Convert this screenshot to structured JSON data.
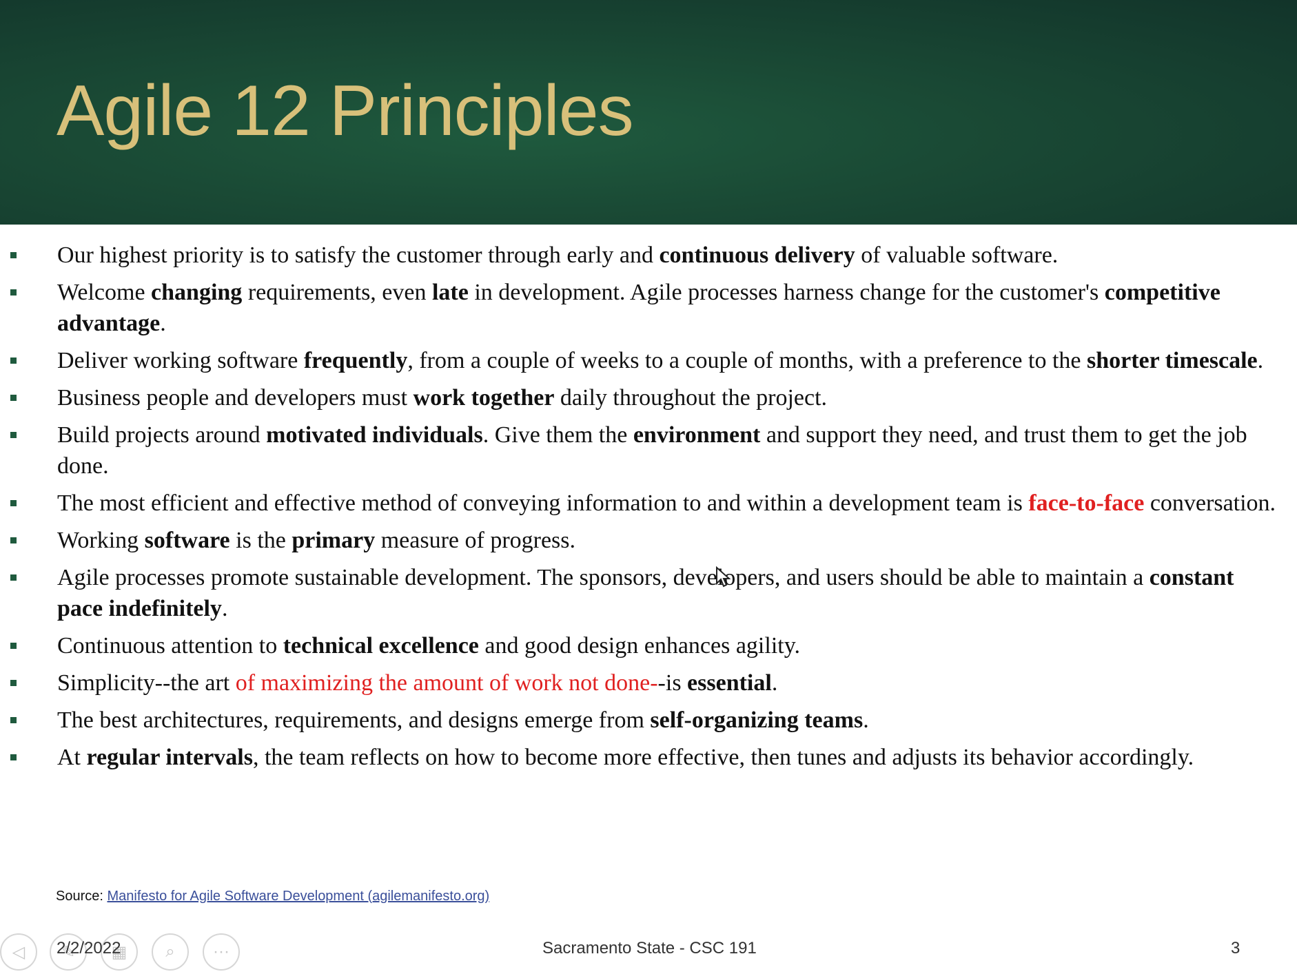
{
  "slide": {
    "title": "Agile 12 Principles",
    "bullets": [
      {
        "parts": [
          {
            "t": "Our highest priority is to satisfy the customer through early and "
          },
          {
            "t": "continuous delivery",
            "b": true
          },
          {
            "t": " of valuable software."
          }
        ]
      },
      {
        "parts": [
          {
            "t": "Welcome "
          },
          {
            "t": "changing",
            "b": true
          },
          {
            "t": " requirements, even "
          },
          {
            "t": "late",
            "b": true
          },
          {
            "t": " in development. Agile processes harness change for the customer's "
          },
          {
            "t": "competitive advantage",
            "b": true
          },
          {
            "t": "."
          }
        ]
      },
      {
        "parts": [
          {
            "t": "Deliver working software "
          },
          {
            "t": "frequently",
            "b": true
          },
          {
            "t": ", from a couple of weeks to a couple of months, with a preference to the "
          },
          {
            "t": "shorter timescale",
            "b": true
          },
          {
            "t": "."
          }
        ]
      },
      {
        "parts": [
          {
            "t": "Business people and developers must "
          },
          {
            "t": "work together",
            "b": true
          },
          {
            "t": " daily throughout the project."
          }
        ]
      },
      {
        "parts": [
          {
            "t": "Build projects around "
          },
          {
            "t": "motivated individuals",
            "b": true
          },
          {
            "t": ". Give them the "
          },
          {
            "t": "environment",
            "b": true
          },
          {
            "t": " and support they need, and trust them to get the job done."
          }
        ]
      },
      {
        "parts": [
          {
            "t": "The most efficient and effective method of conveying information to and within a development team is "
          },
          {
            "t": "face-to-face",
            "b": true,
            "red": true
          },
          {
            "t": " conversation."
          }
        ]
      },
      {
        "parts": [
          {
            "t": "Working "
          },
          {
            "t": "software",
            "b": true
          },
          {
            "t": " is the "
          },
          {
            "t": "primary",
            "b": true
          },
          {
            "t": " measure of progress."
          }
        ]
      },
      {
        "parts": [
          {
            "t": "Agile processes promote sustainable development. The sponsors, developers, and users should be able to maintain a "
          },
          {
            "t": "constant pace indefinitely",
            "b": true
          },
          {
            "t": "."
          }
        ]
      },
      {
        "parts": [
          {
            "t": "Continuous attention to "
          },
          {
            "t": "technical excellence",
            "b": true
          },
          {
            "t": " and good design enhances agility."
          }
        ]
      },
      {
        "parts": [
          {
            "t": "Simplicity--the art "
          },
          {
            "t": "of maximizing the amount of work not done-",
            "red": true
          },
          {
            "t": "-is "
          },
          {
            "t": "essential",
            "b": true
          },
          {
            "t": "."
          }
        ]
      },
      {
        "parts": [
          {
            "t": "The best architectures, requirements, and designs emerge from "
          },
          {
            "t": "self-organizing teams",
            "b": true
          },
          {
            "t": "."
          }
        ]
      },
      {
        "parts": [
          {
            "t": "At "
          },
          {
            "t": "regular intervals",
            "b": true
          },
          {
            "t": ", the team reflects on how to become more effective, then tunes and adjusts its behavior accordingly."
          }
        ]
      }
    ],
    "source_label": "Source: ",
    "source_link": "Manifesto for Agile Software Development (agilemanifesto.org)"
  },
  "footer": {
    "date": "2/2/2022",
    "center": "Sacramento State - CSC 191",
    "page": "3"
  },
  "controls": [
    {
      "name": "previous-slide-icon",
      "glyph": "◁"
    },
    {
      "name": "pen-icon",
      "glyph": "✎"
    },
    {
      "name": "slides-grid-icon",
      "glyph": "▦"
    },
    {
      "name": "zoom-icon",
      "glyph": "⌕"
    },
    {
      "name": "more-options-icon",
      "glyph": "···"
    }
  ],
  "colors": {
    "header": "#1a4a35",
    "title": "#d8c07a",
    "emphasis_red": "#e02020",
    "link": "#3a4f9a"
  }
}
